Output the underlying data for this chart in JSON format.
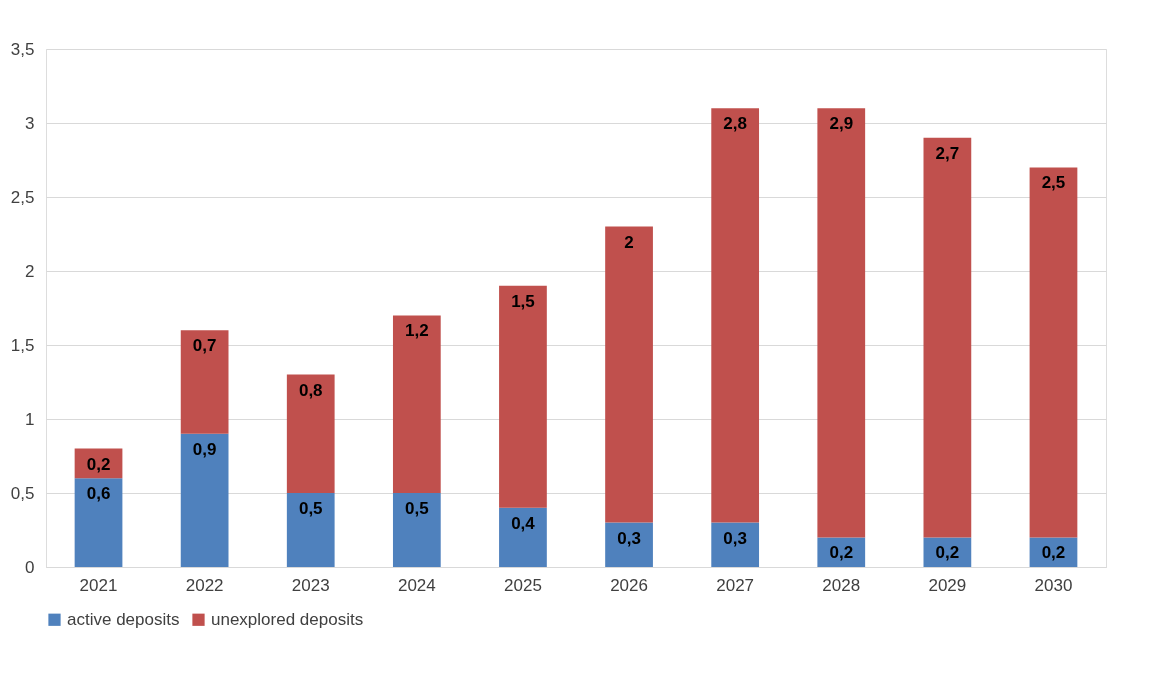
{
  "chart_data": {
    "type": "bar",
    "stacked": true,
    "categories": [
      "2021",
      "2022",
      "2023",
      "2024",
      "2025",
      "2026",
      "2027",
      "2028",
      "2029",
      "2030"
    ],
    "series": [
      {
        "name": "active deposits",
        "color": "#4f81bd",
        "values": [
          0.6,
          0.9,
          0.5,
          0.5,
          0.4,
          0.3,
          0.3,
          0.2,
          0.2,
          0.2
        ],
        "value_labels": [
          "0,6",
          "0,9",
          "0,5",
          "0,5",
          "0,4",
          "0,3",
          "0,3",
          "0,2",
          "0,2",
          "0,2"
        ]
      },
      {
        "name": "unexplored deposits",
        "color": "#c0504d",
        "values": [
          0.2,
          0.7,
          0.8,
          1.2,
          1.5,
          2,
          2.8,
          2.9,
          2.7,
          2.5
        ],
        "value_labels": [
          "0,2",
          "0,7",
          "0,8",
          "1,2",
          "1,5",
          "2",
          "2,8",
          "2,9",
          "2,7",
          "2,5"
        ]
      }
    ],
    "ylim": [
      0,
      3.5
    ],
    "yticks": [
      0,
      {
        "value": 0.5,
        "label": "0,5"
      },
      1,
      {
        "value": 1.5,
        "label": "1,5"
      },
      2,
      {
        "value": 2.5,
        "label": "2,5"
      },
      3,
      {
        "value": 3.5,
        "label": "3,5"
      }
    ],
    "grid": "y",
    "legend": "bottom"
  }
}
